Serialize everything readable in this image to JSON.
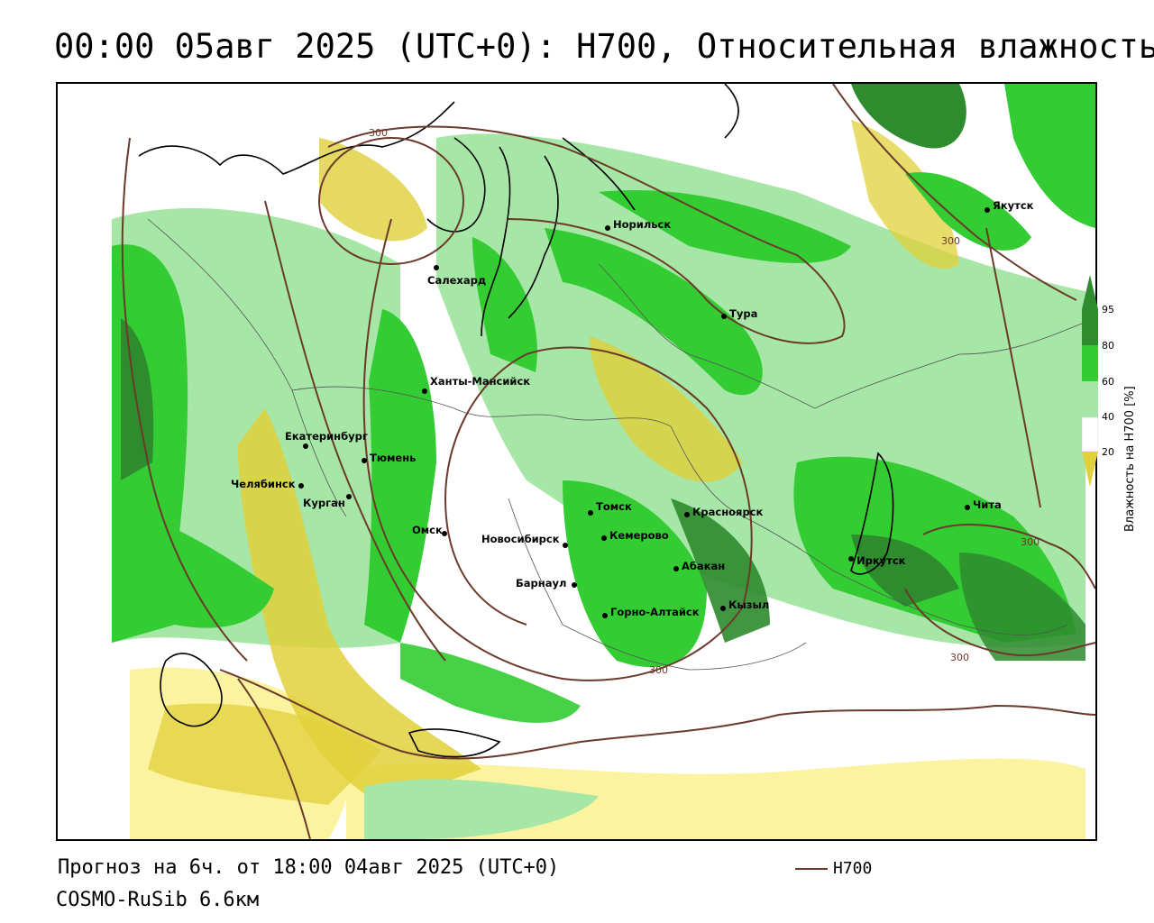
{
  "title": "00:00 05авг 2025 (UTC+0): H700, Относительная влажность",
  "footer": {
    "forecast": "Прогноз на 6ч. от 18:00 04авг 2025 (UTC+0)",
    "model": "COSMO-RuSib 6.6км",
    "line_legend": "H700"
  },
  "colorbar": {
    "label": "Влажность на H700 [%]",
    "ticks": [
      "95",
      "80",
      "60",
      "40",
      "20"
    ],
    "colors": {
      "c95": "#2e8b2e",
      "c80": "#33cc33",
      "c60": "#a6e6a6",
      "c40": "#ffffff",
      "c20": "#fbf3a0",
      "c0": "#e0d03a"
    }
  },
  "contour_color": "#6b3a2a",
  "contour_labels": [
    "300",
    "300",
    "300",
    "300",
    "300"
  ],
  "cities": [
    {
      "name": "Якутск"
    },
    {
      "name": "Норильск"
    },
    {
      "name": "Салехард"
    },
    {
      "name": "Тура"
    },
    {
      "name": "Ханты-Мансийск"
    },
    {
      "name": "Екатеринбург"
    },
    {
      "name": "Тюмень"
    },
    {
      "name": "Челябинск"
    },
    {
      "name": "Курган"
    },
    {
      "name": "Омск"
    },
    {
      "name": "Новосибирск"
    },
    {
      "name": "Томск"
    },
    {
      "name": "Кемерово"
    },
    {
      "name": "Красноярск"
    },
    {
      "name": "Абакан"
    },
    {
      "name": "Барнаул"
    },
    {
      "name": "Горно-Алтайск"
    },
    {
      "name": "Кызыл"
    },
    {
      "name": "Иркутск"
    },
    {
      "name": "Чита"
    }
  ]
}
